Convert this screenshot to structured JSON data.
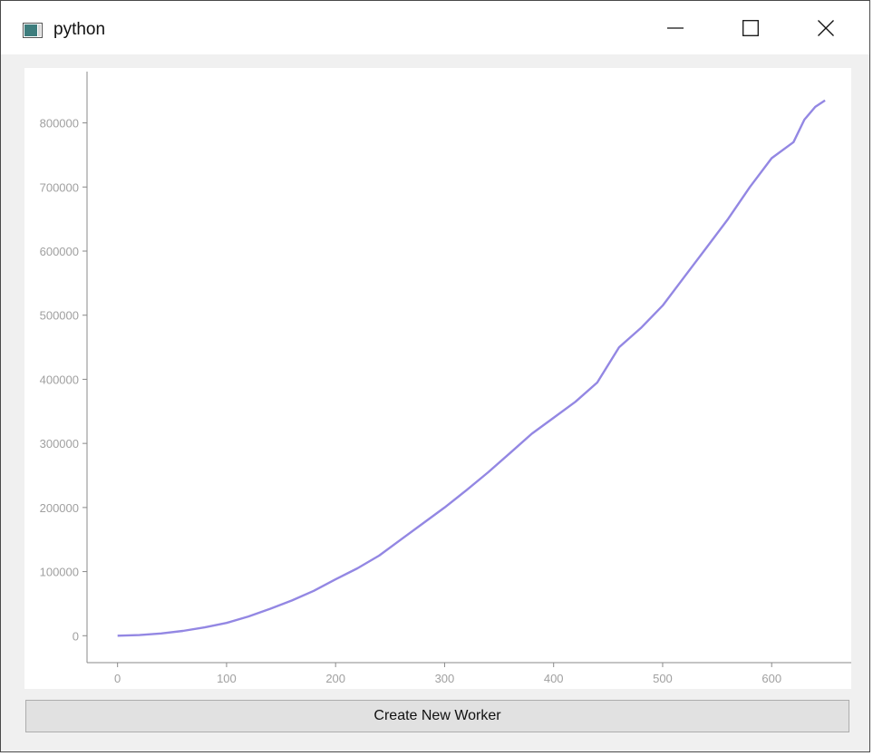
{
  "window": {
    "title": "python"
  },
  "toolbar": {
    "create_worker_label": "Create New Worker"
  },
  "colors": {
    "line": "#9387e3",
    "axis": "#8a8a8a",
    "tick_text": "#a0a0a0"
  },
  "chart_data": {
    "type": "line",
    "xlabel": "",
    "ylabel": "",
    "xlim": [
      -28,
      673
    ],
    "ylim": [
      -42000,
      880000
    ],
    "x_ticks": [
      0,
      100,
      200,
      300,
      400,
      500,
      600
    ],
    "y_ticks": [
      0,
      100000,
      200000,
      300000,
      400000,
      500000,
      600000,
      700000,
      800000
    ],
    "x_tick_labels": [
      "0",
      "100",
      "200",
      "300",
      "400",
      "500",
      "600"
    ],
    "y_tick_labels": [
      "0",
      "100000",
      "200000",
      "300000",
      "400000",
      "500000",
      "600000",
      "700000",
      "800000"
    ],
    "grid": false,
    "series": [
      {
        "x": [
          0,
          20,
          40,
          60,
          80,
          100,
          120,
          140,
          160,
          180,
          200,
          220,
          240,
          260,
          280,
          300,
          320,
          340,
          360,
          380,
          400,
          420,
          440,
          460,
          480,
          500,
          520,
          540,
          560,
          580,
          600,
          620,
          630,
          640,
          649
        ],
        "values": [
          0,
          1000,
          3500,
          7500,
          13000,
          20000,
          30000,
          42000,
          55000,
          70000,
          88000,
          105000,
          125000,
          150000,
          175000,
          200000,
          227000,
          255000,
          285000,
          315000,
          340000,
          365000,
          395000,
          450000,
          480000,
          515000,
          560000,
          605000,
          650000,
          700000,
          745000,
          770000,
          805000,
          825000,
          835000
        ]
      }
    ]
  }
}
